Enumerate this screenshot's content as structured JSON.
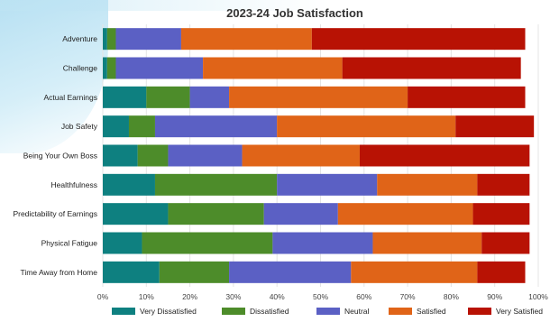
{
  "chart_data": {
    "type": "bar",
    "orientation": "horizontal",
    "stacked": true,
    "title": "2023-24 Job Satisfaction",
    "categories": [
      "Adventure",
      "Challenge",
      "Actual Earnings",
      "Job Safety",
      "Being Your Own Boss",
      "Healthfulness",
      "Predictability of Earnings",
      "Physical Fatigue",
      "Time Away from Home"
    ],
    "series": [
      {
        "name": "Very Dissatisfied",
        "color": "#0e8080",
        "values": [
          1,
          1,
          10,
          6,
          8,
          12,
          15,
          9,
          13
        ]
      },
      {
        "name": "Dissatisfied",
        "color": "#4d8c2a",
        "values": [
          2,
          2,
          10,
          6,
          7,
          28,
          22,
          30,
          16
        ]
      },
      {
        "name": "Neutral",
        "color": "#5b60c4",
        "values": [
          15,
          20,
          9,
          28,
          17,
          23,
          17,
          23,
          28
        ]
      },
      {
        "name": "Satisfied",
        "color": "#e06418",
        "values": [
          30,
          32,
          41,
          41,
          27,
          23,
          31,
          25,
          29
        ]
      },
      {
        "name": "Very Satisfied",
        "color": "#b81204",
        "values": [
          49,
          41,
          27,
          18,
          39,
          12,
          13,
          11,
          11
        ]
      }
    ],
    "x_ticks": [
      "0%",
      "10%",
      "20%",
      "30%",
      "40%",
      "50%",
      "60%",
      "70%",
      "80%",
      "90%",
      "100%"
    ],
    "xlim": [
      0,
      100
    ],
    "grid": true,
    "legend_position": "bottom"
  }
}
